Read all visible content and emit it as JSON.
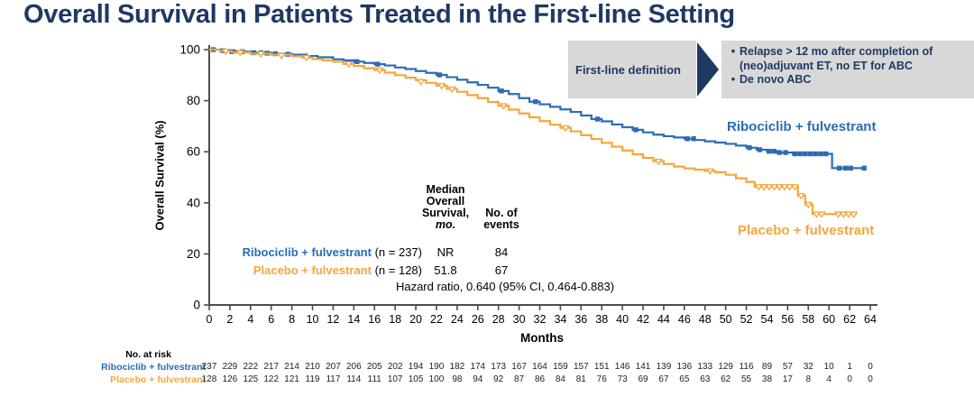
{
  "page": {
    "title": "Overall Survival in Patients Treated in the First-line Setting"
  },
  "definition_box": {
    "label": "First-line definition",
    "bullet_glyph": "•",
    "bullet1": "Relapse > 12 mo after completion of (neo)adjuvant ET, no ET for ABC",
    "bullet2": "De novo ABC"
  },
  "colors": {
    "ribociclib_blue": "#2b6cb5",
    "placebo_orange": "#f4a63d",
    "navy_text": "#1f3864",
    "box_gray": "#d8d8d8",
    "axis_gray": "#4d4d4d"
  },
  "stats_table": {
    "header_col1_line1": "Median",
    "header_col1_line2": "Overall",
    "header_col1_line3": "Survival,",
    "header_col1_line4": "mo.",
    "header_col2_line1": "No. of",
    "header_col2_line2": "events",
    "row1": {
      "name": "Ribociclib + fulvestrant",
      "n": "(n = 237)",
      "median": "NR",
      "events": "84"
    },
    "row2": {
      "name": "Placebo + fulvestrant",
      "n": "(n = 128)",
      "median": "51.8",
      "events": "67"
    },
    "hazard_ratio": "Hazard ratio, 0.640 (95% CI, 0.464-0.883)"
  },
  "chart_data": {
    "type": "line",
    "variant": "kaplan-meier-step",
    "title": "",
    "xlabel": "Months",
    "ylabel": "Overall Survival (%)",
    "xlim": [
      0,
      64
    ],
    "ylim": [
      0,
      100
    ],
    "xticks": [
      0,
      2,
      4,
      6,
      8,
      10,
      12,
      14,
      16,
      18,
      20,
      22,
      24,
      26,
      28,
      30,
      32,
      34,
      36,
      38,
      40,
      42,
      44,
      46,
      48,
      50,
      52,
      54,
      56,
      58,
      60,
      62,
      64
    ],
    "yticks": [
      0,
      20,
      40,
      60,
      80,
      100
    ],
    "grid": false,
    "legend_position": "labels-at-curve-ends",
    "series": [
      {
        "name": "Ribociclib + fulvestrant",
        "color": "#2b6cb5",
        "n": 237,
        "events": 84,
        "median_os_months": "NR",
        "censor_marker": "filled-square",
        "steps": [
          [
            0,
            100
          ],
          [
            1.2,
            99.6
          ],
          [
            2.5,
            99.2
          ],
          [
            4,
            98.8
          ],
          [
            6,
            98.4
          ],
          [
            8,
            98
          ],
          [
            9,
            97.5
          ],
          [
            10.5,
            97
          ],
          [
            12,
            96.2
          ],
          [
            13,
            95.8
          ],
          [
            14,
            95.3
          ],
          [
            15,
            94.8
          ],
          [
            16,
            94.3
          ],
          [
            17,
            93.8
          ],
          [
            18,
            93
          ],
          [
            19,
            92.4
          ],
          [
            20,
            91.6
          ],
          [
            21,
            90.9
          ],
          [
            22,
            90.1
          ],
          [
            23,
            89.2
          ],
          [
            24,
            88.2
          ],
          [
            25,
            87.2
          ],
          [
            26,
            86.2
          ],
          [
            27,
            85.1
          ],
          [
            28,
            83.8
          ],
          [
            29,
            82.6
          ],
          [
            30,
            81
          ],
          [
            31,
            79.6
          ],
          [
            32,
            78.6
          ],
          [
            33,
            77.6
          ],
          [
            34,
            76.6
          ],
          [
            35,
            75.6
          ],
          [
            36,
            74.2
          ],
          [
            37,
            72.8
          ],
          [
            38,
            71.9
          ],
          [
            39,
            70.7
          ],
          [
            40,
            69.6
          ],
          [
            41,
            68.6
          ],
          [
            42,
            67.6
          ],
          [
            43,
            66.7
          ],
          [
            44,
            66.1
          ],
          [
            45,
            65.6
          ],
          [
            46,
            65.1
          ],
          [
            47,
            64.6
          ],
          [
            48,
            64.1
          ],
          [
            49,
            63.6
          ],
          [
            50,
            63.1
          ],
          [
            51,
            62.4
          ],
          [
            52,
            61.6
          ],
          [
            53,
            60.8
          ],
          [
            54,
            60.2
          ],
          [
            55,
            59.7
          ],
          [
            56.5,
            59.2
          ],
          [
            60.3,
            53.6
          ],
          [
            63.6,
            53.6
          ]
        ],
        "censors": [
          [
            0.4,
            100
          ],
          [
            1.3,
            99.6
          ],
          [
            2.2,
            99.2
          ],
          [
            3.2,
            99.2
          ],
          [
            4.3,
            98.8
          ],
          [
            5,
            98.8
          ],
          [
            5.6,
            98.6
          ],
          [
            6.4,
            98.4
          ],
          [
            7.6,
            98.2
          ],
          [
            9.3,
            97.5
          ],
          [
            14.3,
            95.3
          ],
          [
            16.3,
            94.3
          ],
          [
            22.3,
            90.1
          ],
          [
            28.3,
            83.8
          ],
          [
            31.6,
            79.6
          ],
          [
            37.6,
            72.8
          ],
          [
            41.3,
            68.6
          ],
          [
            46.3,
            65.1
          ],
          [
            46.9,
            65.1
          ],
          [
            52.3,
            61.6
          ],
          [
            53.3,
            60.8
          ],
          [
            54.2,
            60.2
          ],
          [
            54.7,
            60.2
          ],
          [
            55.2,
            59.7
          ],
          [
            55.8,
            59.7
          ],
          [
            56.7,
            59.2
          ],
          [
            57.2,
            59.2
          ],
          [
            57.7,
            59.2
          ],
          [
            58.2,
            59.2
          ],
          [
            58.7,
            59.2
          ],
          [
            59.2,
            59.2
          ],
          [
            59.7,
            59.2
          ],
          [
            61,
            53.6
          ],
          [
            61.6,
            53.6
          ],
          [
            62.1,
            53.6
          ],
          [
            63.4,
            53.6
          ]
        ]
      },
      {
        "name": "Placebo + fulvestrant",
        "color": "#f4a63d",
        "n": 128,
        "events": 67,
        "median_os_months": "51.8",
        "censor_marker": "open-triangle",
        "steps": [
          [
            0,
            100
          ],
          [
            1,
            99.4
          ],
          [
            2.2,
            98.9
          ],
          [
            4,
            98.4
          ],
          [
            6,
            98
          ],
          [
            8,
            97.4
          ],
          [
            9,
            96.9
          ],
          [
            10,
            96.3
          ],
          [
            11,
            95.8
          ],
          [
            12,
            95.2
          ],
          [
            13,
            94.4
          ],
          [
            14,
            93.6
          ],
          [
            15,
            92.7
          ],
          [
            16,
            92
          ],
          [
            17,
            91
          ],
          [
            18,
            90
          ],
          [
            19,
            89
          ],
          [
            20,
            88
          ],
          [
            21,
            87
          ],
          [
            22,
            85.9
          ],
          [
            23,
            84.6
          ],
          [
            24,
            83.5
          ],
          [
            25,
            82.2
          ],
          [
            26,
            81
          ],
          [
            27,
            79.5
          ],
          [
            28,
            78
          ],
          [
            29,
            76.5
          ],
          [
            30,
            75
          ],
          [
            31,
            73.5
          ],
          [
            32,
            72
          ],
          [
            33,
            70.6
          ],
          [
            34,
            69.4
          ],
          [
            35,
            68
          ],
          [
            36,
            66.5
          ],
          [
            37,
            65
          ],
          [
            38,
            63.5
          ],
          [
            39,
            62
          ],
          [
            40,
            60.5
          ],
          [
            41,
            59
          ],
          [
            42,
            57.6
          ],
          [
            43,
            56.3
          ],
          [
            44,
            55.2
          ],
          [
            45,
            54.2
          ],
          [
            46,
            53.5
          ],
          [
            47,
            53
          ],
          [
            48,
            52.5
          ],
          [
            49,
            52
          ],
          [
            50,
            51
          ],
          [
            51,
            49.6
          ],
          [
            52,
            48.2
          ],
          [
            52.8,
            46.3
          ],
          [
            57,
            42.8
          ],
          [
            57.7,
            39.3
          ],
          [
            58.4,
            35.6
          ],
          [
            62.7,
            35.6
          ]
        ],
        "censors": [
          [
            1.6,
            99.4
          ],
          [
            3,
            98.9
          ],
          [
            5,
            98.4
          ],
          [
            7,
            97.7
          ],
          [
            9.4,
            96.9
          ],
          [
            13.5,
            94.4
          ],
          [
            16.5,
            92
          ],
          [
            20.5,
            87.5
          ],
          [
            22.5,
            85.9
          ],
          [
            23.5,
            84.6
          ],
          [
            28.5,
            78
          ],
          [
            34.5,
            69.4
          ],
          [
            43.5,
            56.3
          ],
          [
            48.5,
            52.5
          ],
          [
            53.2,
            46.3
          ],
          [
            53.7,
            46.3
          ],
          [
            54.2,
            46.3
          ],
          [
            54.7,
            46.3
          ],
          [
            55.2,
            46.3
          ],
          [
            55.7,
            46.3
          ],
          [
            56.2,
            46.3
          ],
          [
            56.7,
            46.3
          ],
          [
            57.3,
            42.8
          ],
          [
            58,
            39.3
          ],
          [
            58.8,
            35.6
          ],
          [
            59.3,
            35.6
          ],
          [
            60.9,
            35.6
          ],
          [
            61.4,
            35.6
          ],
          [
            61.9,
            35.6
          ],
          [
            62.4,
            35.6
          ]
        ]
      }
    ],
    "annotations": {
      "hazard_ratio": "Hazard ratio, 0.640 (95% CI, 0.464-0.883)"
    }
  },
  "at_risk": {
    "header": "No. at risk",
    "rows": [
      {
        "label": "Ribociclib + fulvestrant",
        "color": "#2b6cb5",
        "values": [
          237,
          229,
          222,
          217,
          214,
          210,
          207,
          206,
          205,
          202,
          194,
          190,
          182,
          174,
          173,
          167,
          164,
          159,
          157,
          151,
          146,
          141,
          139,
          136,
          133,
          129,
          116,
          89,
          57,
          32,
          10,
          1,
          0
        ]
      },
      {
        "label": "Placebo + fulvestrant",
        "color": "#f4a63d",
        "values": [
          128,
          126,
          125,
          122,
          121,
          119,
          117,
          114,
          111,
          107,
          105,
          100,
          98,
          94,
          92,
          87,
          86,
          84,
          81,
          76,
          73,
          69,
          67,
          65,
          63,
          62,
          55,
          38,
          17,
          8,
          4,
          0,
          0
        ]
      }
    ]
  }
}
